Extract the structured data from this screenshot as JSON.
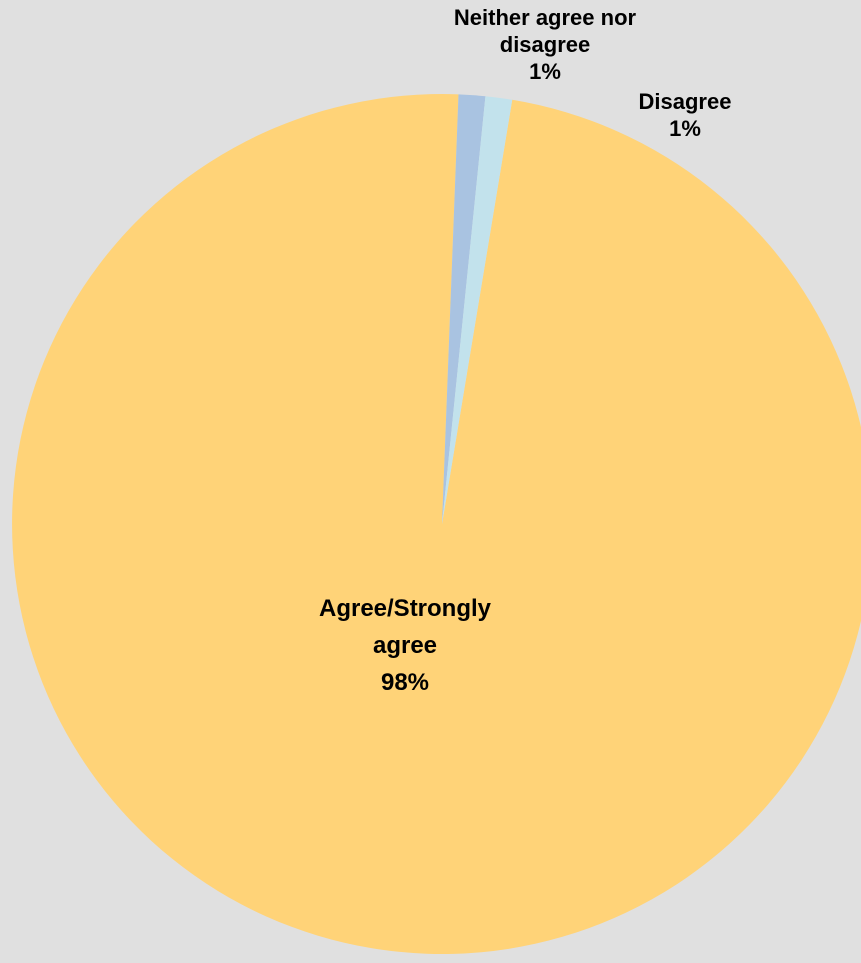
{
  "chart_data": {
    "type": "pie",
    "title": "",
    "slices": [
      {
        "name_lines": [
          "Agree/Strongly",
          "agree"
        ],
        "value": 98,
        "value_label": "98%",
        "color": "#ffd378"
      },
      {
        "name_lines": [
          "Neither agree nor",
          "disagree"
        ],
        "value": 1,
        "value_label": "1%",
        "color": "#a9c3e1"
      },
      {
        "name_lines": [
          "Disagree"
        ],
        "value": 1,
        "value_label": "1%",
        "color": "#c2e2ec"
      }
    ],
    "legend": "none"
  },
  "colors": {
    "background": "#e0e0e0",
    "label_text": "#000000"
  }
}
